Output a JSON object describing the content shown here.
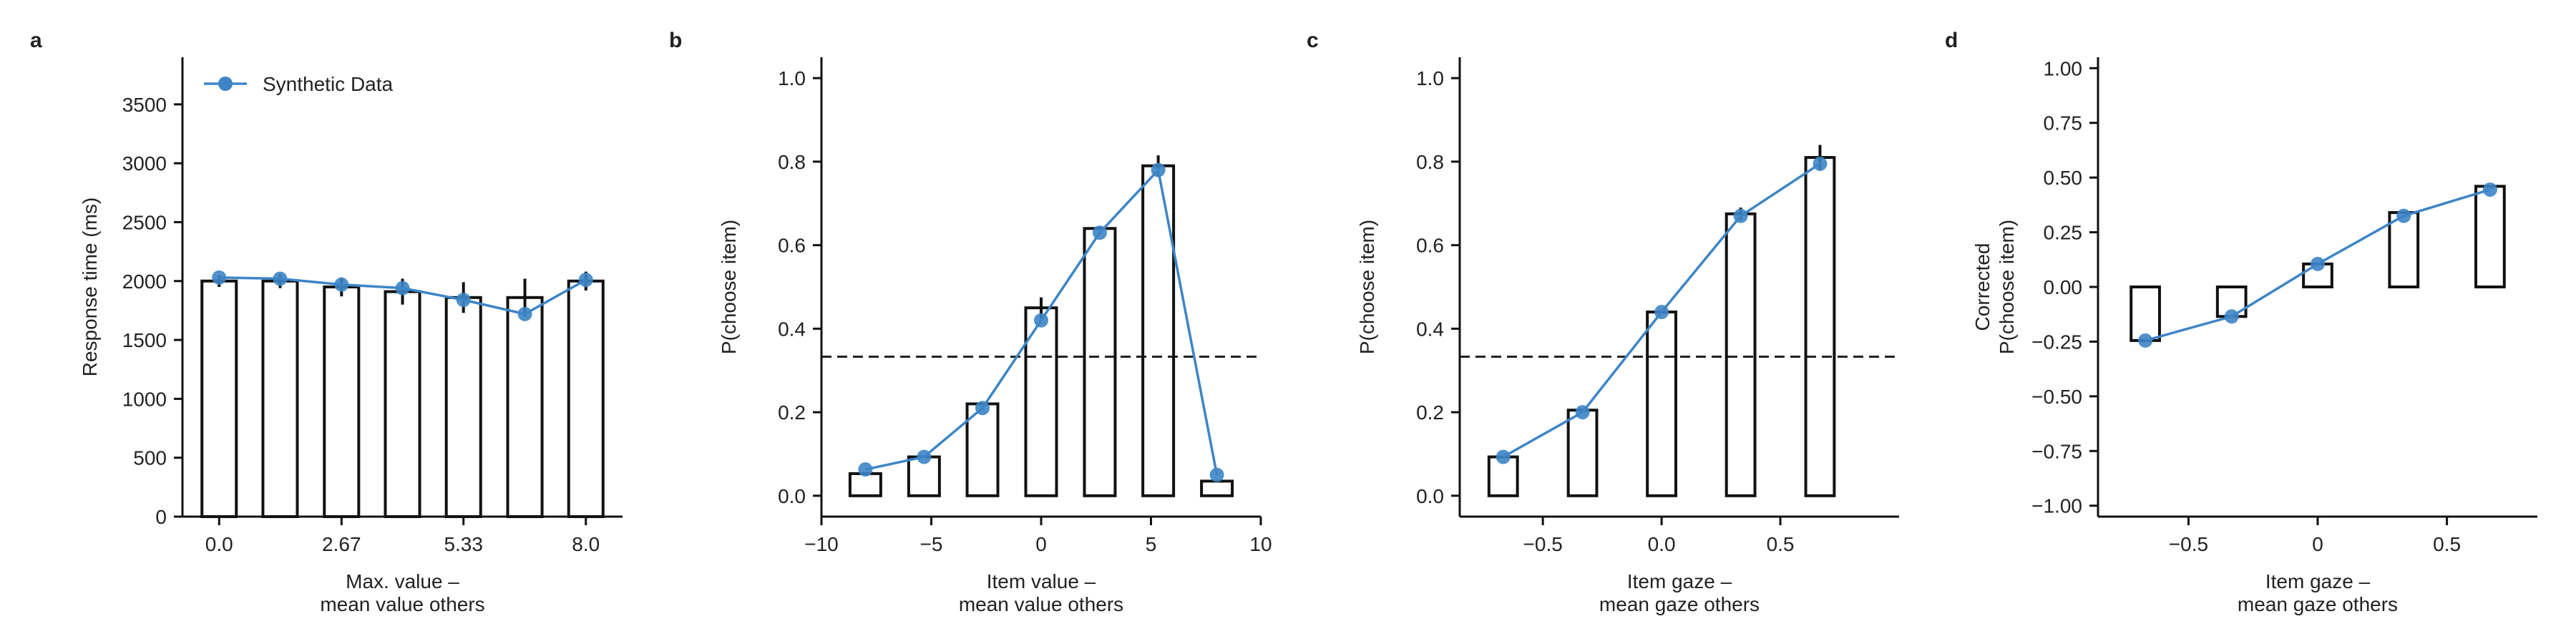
{
  "colors": {
    "model": "#3d85c6",
    "bars": "#111111",
    "chance": "#222222"
  },
  "chart_data": [
    {
      "panel": "a",
      "type": "bar",
      "legend": {
        "label": "Synthetic Data",
        "placement": "top-left"
      },
      "ylabel": "Response time (ms)",
      "xlabel_lines": [
        "Max. value –",
        "mean value others"
      ],
      "xlim": [
        -0.8,
        8.8
      ],
      "ylim": [
        0,
        3900
      ],
      "xticks": [
        0.0,
        2.67,
        5.33,
        8.0
      ],
      "xtick_labels": [
        "0.0",
        "2.67",
        "5.33",
        "8.0"
      ],
      "yticks": [
        0,
        500,
        1000,
        1500,
        2000,
        2500,
        3000,
        3500
      ],
      "ytick_labels": [
        "0",
        "500",
        "1000",
        "1500",
        "2000",
        "2500",
        "3000",
        "3500"
      ],
      "bar_width": 0.75,
      "bars": [
        {
          "x": 0.0,
          "value": 2000,
          "err": 50
        },
        {
          "x": 1.33,
          "value": 2000,
          "err": 60
        },
        {
          "x": 2.67,
          "value": 1950,
          "err": 80
        },
        {
          "x": 4.0,
          "value": 1910,
          "err": 110
        },
        {
          "x": 5.33,
          "value": 1860,
          "err": 130
        },
        {
          "x": 6.67,
          "value": 1860,
          "err": 160
        },
        {
          "x": 8.0,
          "value": 2000,
          "err": 80
        }
      ],
      "series": [
        {
          "name": "Synthetic Data",
          "x": [
            0.0,
            1.33,
            2.67,
            4.0,
            5.33,
            6.67,
            8.0
          ],
          "y": [
            2030,
            2020,
            1970,
            1940,
            1840,
            1720,
            2010
          ]
        }
      ]
    },
    {
      "panel": "b",
      "type": "bar",
      "ylabel": "P(choose item)",
      "xlabel_lines": [
        "Item value –",
        "mean value others"
      ],
      "xlim": [
        -10,
        10
      ],
      "ylim": [
        -0.05,
        1.05
      ],
      "xticks": [
        -10,
        -5,
        0,
        5,
        10
      ],
      "xtick_labels": [
        "−10",
        "−5",
        "0",
        "5",
        "10"
      ],
      "yticks": [
        0.0,
        0.2,
        0.4,
        0.6,
        0.8,
        1.0
      ],
      "ytick_labels": [
        "0.0",
        "0.2",
        "0.4",
        "0.6",
        "0.8",
        "1.0"
      ],
      "chance_level": 0.333,
      "bar_width": 1.4,
      "bars": [
        {
          "x": -8.0,
          "value": 0.053,
          "err": 0
        },
        {
          "x": -5.33,
          "value": 0.093,
          "err": 0
        },
        {
          "x": -2.67,
          "value": 0.22,
          "err": 0
        },
        {
          "x": 0.0,
          "value": 0.45,
          "err": 0.025
        },
        {
          "x": 2.67,
          "value": 0.64,
          "err": 0
        },
        {
          "x": 5.33,
          "value": 0.79,
          "err": 0.025
        },
        {
          "x": 8.0,
          "value": 0.035,
          "err": 0
        }
      ],
      "series": [
        {
          "name": "Synthetic Data",
          "x": [
            -8.0,
            -5.33,
            -2.67,
            0.0,
            2.67,
            5.33,
            8.0
          ],
          "y": [
            0.063,
            0.093,
            0.21,
            0.42,
            0.63,
            0.78,
            0.05
          ]
        }
      ]
    },
    {
      "panel": "c",
      "type": "bar",
      "ylabel": "P(choose item)",
      "xlabel_lines": [
        "Item gaze –",
        "mean gaze others"
      ],
      "xlim": [
        -0.85,
        1.0
      ],
      "ylim": [
        -0.05,
        1.05
      ],
      "xticks": [
        -0.5,
        0.0,
        0.5
      ],
      "xtick_labels": [
        "−0.5",
        "0.0",
        "0.5"
      ],
      "yticks": [
        0.0,
        0.2,
        0.4,
        0.6,
        0.8,
        1.0
      ],
      "ytick_labels": [
        "0.0",
        "0.2",
        "0.4",
        "0.6",
        "0.8",
        "1.0"
      ],
      "chance_level": 0.333,
      "bar_width": 0.12,
      "bars": [
        {
          "x": -0.667,
          "value": 0.093,
          "err": 0
        },
        {
          "x": -0.333,
          "value": 0.205,
          "err": 0
        },
        {
          "x": 0.0,
          "value": 0.44,
          "err": 0
        },
        {
          "x": 0.333,
          "value": 0.675,
          "err": 0.015
        },
        {
          "x": 0.667,
          "value": 0.81,
          "err": 0.03
        }
      ],
      "series": [
        {
          "name": "Synthetic Data",
          "x": [
            -0.667,
            -0.333,
            0.0,
            0.333,
            0.667
          ],
          "y": [
            0.093,
            0.2,
            0.44,
            0.67,
            0.795
          ]
        }
      ]
    },
    {
      "panel": "d",
      "type": "bar",
      "ylabel_lines": [
        "Corrected",
        "P(choose item)"
      ],
      "xlabel_lines": [
        "Item gaze –",
        "mean gaze others"
      ],
      "xlim": [
        -0.85,
        0.85
      ],
      "ylim": [
        -1.05,
        1.05
      ],
      "xticks": [
        -0.5,
        0.0,
        0.5
      ],
      "xtick_labels": [
        "−0.5",
        "0",
        "0.5"
      ],
      "yticks": [
        -1.0,
        -0.75,
        -0.5,
        -0.25,
        0.0,
        0.25,
        0.5,
        0.75,
        1.0
      ],
      "ytick_labels": [
        "−1.00",
        "−0.75",
        "−0.50",
        "−0.25",
        "0.00",
        "0.25",
        "0.50",
        "0.75",
        "1.00"
      ],
      "bar_width": 0.11,
      "bars": [
        {
          "x": -0.667,
          "value": -0.245,
          "err": 0
        },
        {
          "x": -0.333,
          "value": -0.135,
          "err": 0
        },
        {
          "x": 0.0,
          "value": 0.105,
          "err": 0
        },
        {
          "x": 0.333,
          "value": 0.34,
          "err": 0
        },
        {
          "x": 0.667,
          "value": 0.46,
          "err": 0
        }
      ],
      "series": [
        {
          "name": "Synthetic Data",
          "x": [
            -0.667,
            -0.333,
            0.0,
            0.333,
            0.667
          ],
          "y": [
            -0.245,
            -0.135,
            0.105,
            0.325,
            0.445
          ]
        }
      ]
    }
  ]
}
